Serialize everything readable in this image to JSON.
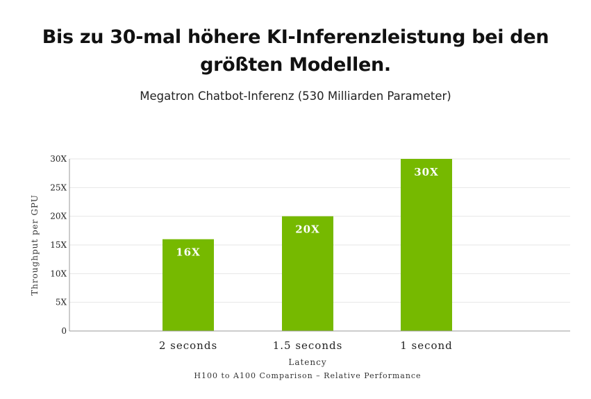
{
  "header": {
    "title_line1": "Bis zu 30-mal höhere KI-Inferenzleistung bei den",
    "title_line2": "größten Modellen.",
    "subtitle": "Megatron Chatbot-Inferenz (530 Milliarden Parameter)"
  },
  "colors": {
    "bar": "#76b900",
    "grid": "#e6e6e6",
    "axis": "#999999"
  },
  "chart_data": {
    "type": "bar",
    "categories": [
      "2 seconds",
      "1.5 seconds",
      "1 second"
    ],
    "values": [
      16,
      20,
      30
    ],
    "data_labels": [
      "16X",
      "20X",
      "30X"
    ],
    "xlabel": "Latency",
    "ylabel": "Throughput per GPU",
    "footnote": "H100 to A100 Comparison – Relative Performance",
    "ylim": [
      0,
      30
    ],
    "yticks": [
      0,
      5,
      10,
      15,
      20,
      25,
      30
    ],
    "ytick_labels": [
      "0",
      "5X",
      "10X",
      "15X",
      "20X",
      "25X",
      "30X"
    ],
    "grid": true,
    "legend": "none"
  }
}
